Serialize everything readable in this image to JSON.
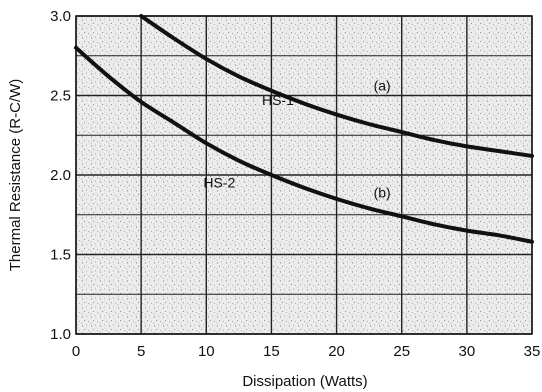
{
  "chart_data": {
    "type": "line",
    "title": "",
    "xlabel": "Dissipation (Watts)",
    "ylabel": "Thermal Resistance (R-C/W)",
    "xlim": [
      0,
      35
    ],
    "ylim": [
      1.0,
      3.0
    ],
    "x_ticks": [
      0,
      5,
      10,
      15,
      20,
      25,
      30,
      35
    ],
    "y_ticks": [
      1.0,
      1.5,
      2.0,
      2.5,
      3.0
    ],
    "x_tick_labels": [
      "0",
      "5",
      "10",
      "15",
      "20",
      "25",
      "30",
      "35"
    ],
    "y_tick_labels": [
      "1.0",
      "1.5",
      "2.0",
      "2.5",
      "3.0"
    ],
    "grid": true,
    "minor_grid_y": true,
    "background": "stippled",
    "line_color": "#111111",
    "series": [
      {
        "name": "HS-1",
        "tag": "(a)",
        "x": [
          5,
          7.5,
          10,
          12.5,
          15,
          17.5,
          20,
          22.5,
          25,
          27.5,
          30,
          32.5,
          35
        ],
        "y": [
          3.0,
          2.86,
          2.73,
          2.62,
          2.53,
          2.45,
          2.38,
          2.32,
          2.27,
          2.22,
          2.18,
          2.15,
          2.12
        ]
      },
      {
        "name": "HS-2",
        "tag": "(b)",
        "x": [
          0,
          2.5,
          5,
          7.5,
          10,
          12.5,
          15,
          17.5,
          20,
          22.5,
          25,
          27.5,
          30,
          32.5,
          35
        ],
        "y": [
          2.8,
          2.62,
          2.46,
          2.33,
          2.2,
          2.09,
          2.0,
          1.92,
          1.85,
          1.79,
          1.74,
          1.69,
          1.65,
          1.62,
          1.58
        ]
      }
    ],
    "annotations": [
      {
        "text": "HS-1",
        "x": 15.5,
        "y": 2.44
      },
      {
        "text": "(a)",
        "x": 23.5,
        "y": 2.53
      },
      {
        "text": "HS-2",
        "x": 11,
        "y": 1.92
      },
      {
        "text": "(b)",
        "x": 23.5,
        "y": 1.86
      }
    ]
  }
}
